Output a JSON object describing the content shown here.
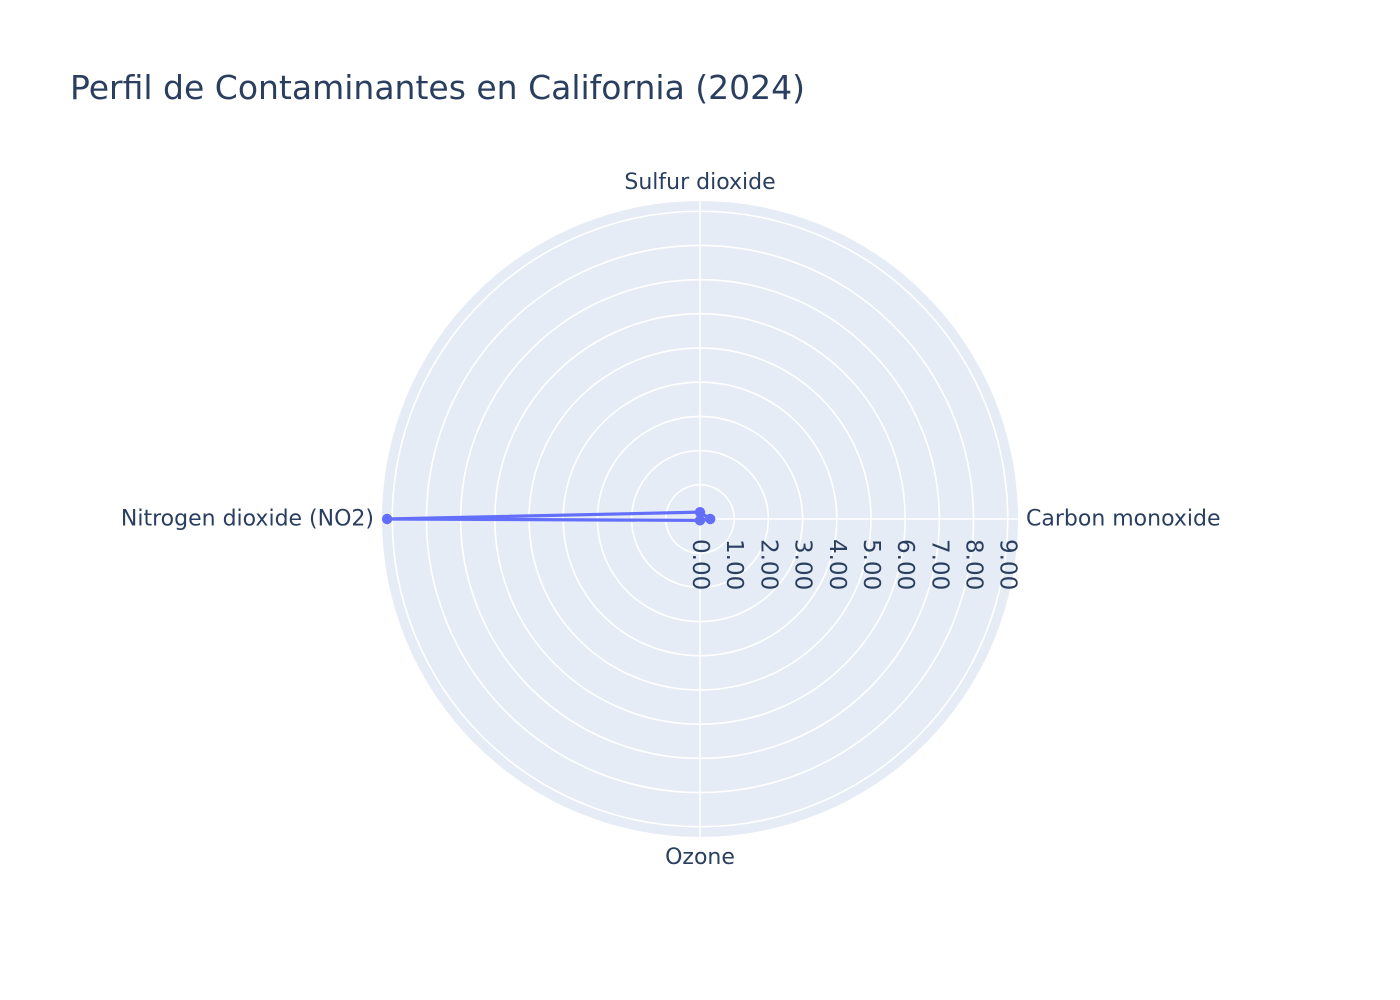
{
  "chart_data": {
    "type": "radar",
    "title": "Perfil de Contaminantes en California (2024)",
    "categories": [
      "Carbon monoxide",
      "Sulfur dioxide",
      "Nitrogen dioxide (NO2)",
      "Ozone"
    ],
    "series": [
      {
        "values": [
          0.3,
          0.2,
          9.15,
          0.04
        ],
        "color": "#636efa"
      }
    ],
    "radial_range": [
      0,
      9.3
    ],
    "radial_ticks": [
      0,
      1,
      2,
      3,
      4,
      5,
      6,
      7,
      8,
      9
    ],
    "radial_tick_labels": [
      "0.00",
      "1.00",
      "2.00",
      "3.00",
      "4.00",
      "5.00",
      "6.00",
      "7.00",
      "8.00",
      "9.00"
    ],
    "closed_trace": true,
    "markers": true,
    "grid": true,
    "legend": "none",
    "background_color": "#e5ecf6",
    "grid_color": "#ffffff",
    "text_color": "#2a3f5f"
  }
}
